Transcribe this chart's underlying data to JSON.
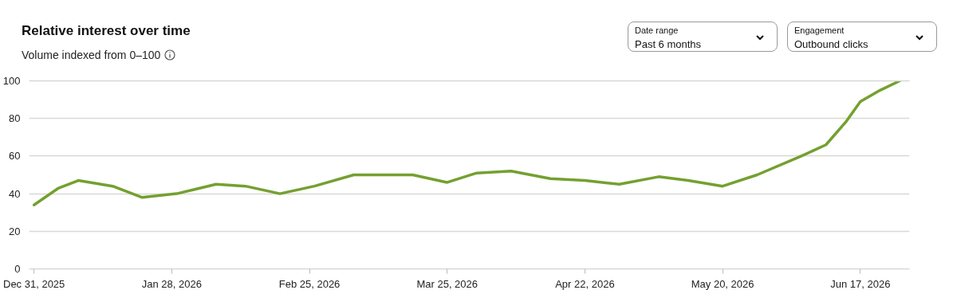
{
  "chart_data": {
    "type": "line",
    "title": "Relative interest over time",
    "subtitle": "Volume indexed from 0–100",
    "annotations": [
      "Date range",
      "Past 6 months",
      "Engagement",
      "Outbound clicks"
    ],
    "x": [
      "2025-12-31",
      "2026-01-05",
      "2026-01-09",
      "2026-01-16",
      "2026-01-22",
      "2026-01-29",
      "2026-02-06",
      "2026-02-12",
      "2026-02-19",
      "2026-02-26",
      "2026-03-06",
      "2026-03-12",
      "2026-03-18",
      "2026-03-25",
      "2026-03-31",
      "2026-04-07",
      "2026-04-15",
      "2026-04-22",
      "2026-04-29",
      "2026-05-07",
      "2026-05-13",
      "2026-05-20",
      "2026-05-27",
      "2026-06-05",
      "2026-06-10",
      "2026-06-14",
      "2026-06-17",
      "2026-06-21",
      "2026-06-25"
    ],
    "series": [
      {
        "color": "#74a030",
        "values": [
          34,
          43,
          47,
          44,
          38,
          40,
          45,
          44,
          40,
          44,
          50,
          50,
          50,
          46,
          51,
          52,
          48,
          47,
          45,
          49,
          47,
          44,
          50,
          60,
          66,
          78,
          89,
          95,
          100
        ]
      }
    ],
    "xlim": [
      "2025-12-30",
      "2026-06-27"
    ],
    "xticks": [
      {
        "value": "2025-12-31",
        "label": "Dec 31, 2025"
      },
      {
        "value": "2026-01-28",
        "label": "Jan 28, 2026"
      },
      {
        "value": "2026-02-25",
        "label": "Feb 25, 2026"
      },
      {
        "value": "2026-03-25",
        "label": "Mar 25, 2026"
      },
      {
        "value": "2026-04-22",
        "label": "Apr 22, 2026"
      },
      {
        "value": "2026-05-20",
        "label": "May 20, 2026"
      },
      {
        "value": "2026-06-17",
        "label": "Jun 17, 2026"
      }
    ],
    "ylim": [
      0,
      100
    ],
    "yticks": [
      0,
      20,
      40,
      60,
      80,
      100
    ],
    "grid": "y",
    "marker": "none",
    "line_style": "solid"
  }
}
